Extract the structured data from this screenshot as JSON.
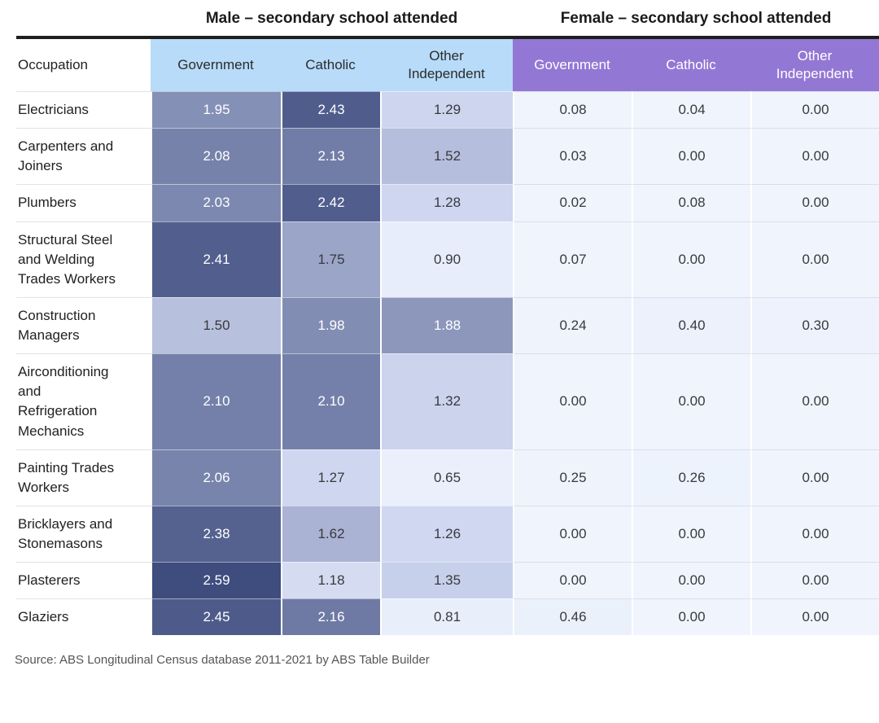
{
  "titles": {
    "male": "Male – secondary school attended",
    "female": "Female – secondary school attended"
  },
  "colors": {
    "male_header_bg": "#b7dbf8",
    "female_header_bg": "#9377d4",
    "top_rule": "#1f1f1f",
    "heat_scale": [
      [
        0.0,
        "#f0f5fd"
      ],
      [
        0.9,
        "#e7edfa"
      ],
      [
        1.3,
        "#cdd5ef"
      ],
      [
        2.6,
        "#3d4b7d"
      ]
    ],
    "white_text_threshold": 1.8,
    "dark_cell_text": "#ffffff",
    "light_cell_text": "#38393f"
  },
  "source": "Source: ABS Longitudinal Census database 2011-2021 by ABS Table Builder",
  "chart_data": {
    "type": "heatmap",
    "row_header": "Occupation",
    "column_groups": [
      {
        "label": "Male – secondary school attended",
        "columns": [
          "Government",
          "Catholic",
          "Other Independent"
        ]
      },
      {
        "label": "Female – secondary school attended",
        "columns": [
          "Government",
          "Catholic",
          "Other Independent"
        ]
      }
    ],
    "value_format": "2dp",
    "rows": [
      {
        "occupation": "Electricians",
        "male": [
          1.95,
          2.43,
          1.29
        ],
        "female": [
          0.08,
          0.04,
          0.0
        ]
      },
      {
        "occupation": "Carpenters and Joiners",
        "male": [
          2.08,
          2.13,
          1.52
        ],
        "female": [
          0.03,
          0.0,
          0.0
        ]
      },
      {
        "occupation": "Plumbers",
        "male": [
          2.03,
          2.42,
          1.28
        ],
        "female": [
          0.02,
          0.08,
          0.0
        ]
      },
      {
        "occupation": "Structural Steel and Welding Trades Workers",
        "male": [
          2.41,
          1.75,
          0.9
        ],
        "female": [
          0.07,
          0.0,
          0.0
        ]
      },
      {
        "occupation": "Construction Managers",
        "male": [
          1.5,
          1.98,
          1.88
        ],
        "female": [
          0.24,
          0.4,
          0.3
        ]
      },
      {
        "occupation": "Airconditioning and Refrigeration Mechanics",
        "male": [
          2.1,
          2.1,
          1.32
        ],
        "female": [
          0.0,
          0.0,
          0.0
        ]
      },
      {
        "occupation": "Painting Trades Workers",
        "male": [
          2.06,
          1.27,
          0.65
        ],
        "female": [
          0.25,
          0.26,
          0.0
        ]
      },
      {
        "occupation": "Bricklayers and Stonemasons",
        "male": [
          2.38,
          1.62,
          1.26
        ],
        "female": [
          0.0,
          0.0,
          0.0
        ]
      },
      {
        "occupation": "Plasterers",
        "male": [
          2.59,
          1.18,
          1.35
        ],
        "female": [
          0.0,
          0.0,
          0.0
        ]
      },
      {
        "occupation": "Glaziers",
        "male": [
          2.45,
          2.16,
          0.81
        ],
        "female": [
          0.46,
          0.0,
          0.0
        ]
      }
    ]
  }
}
